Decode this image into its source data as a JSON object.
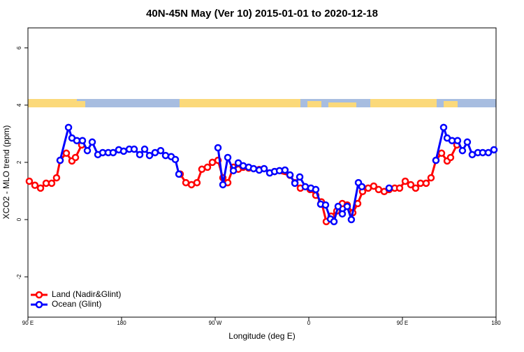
{
  "chart_data": {
    "type": "line",
    "title": "40N-45N May (Ver 10)   2015-01-01 to 2020-12-18",
    "x_label": "Longitude (deg E)",
    "y_label": "XCO2 - MLO trend (ppm)",
    "xlim": [
      90,
      540
    ],
    "xticks": [
      {
        "value": 90,
        "label": "90 E"
      },
      {
        "value": 180,
        "label": "180"
      },
      {
        "value": 270,
        "label": "90 W"
      },
      {
        "value": 360,
        "label": "0"
      },
      {
        "value": 450,
        "label": "90 E"
      },
      {
        "value": 540,
        "label": "180"
      }
    ],
    "ylim": [
      -3.41,
      6.7
    ],
    "yticks": [
      -2,
      0,
      2,
      4,
      6
    ],
    "legend": "bottom-left",
    "series": [
      {
        "name": "Land (Nadir&Glint)",
        "color": "#ff0000",
        "x": [
          91.3,
          96.7,
          102.1,
          107.5,
          112.8,
          117.5,
          120.9,
          126.9,
          132.3,
          135.7,
          141.7,
          null,
          236.4,
          241.8,
          247.2,
          252.5,
          257.2,
          262.6,
          267.3,
          272.7,
          277.4,
          282.1,
          287.5,
          292.2,
          296.9,
          302.2,
          312.3,
          327.1,
          341.9,
          346.6,
          351.9,
          361.3,
          366.7,
          372.1,
          376.8,
          381.5,
          386.9,
          392.2,
          396.9,
          402.3,
          407,
          411.7,
          417.1,
          422.4,
          427.1,
          432.5,
          437.2,
          442.6,
          447.3,
          452.7,
          458,
          462.7,
          467.4,
          472.8,
          477.5,
          482.2,
          487.6,
          493,
          496.3,
          502.4
        ],
        "values": [
          1.34,
          1.2,
          1.1,
          1.27,
          1.27,
          1.46,
          2.07,
          2.32,
          2.05,
          2.17,
          2.61,
          null,
          1.59,
          1.29,
          1.22,
          1.29,
          1.76,
          1.83,
          2.0,
          2.07,
          1.46,
          1.29,
          1.83,
          1.76,
          1.83,
          1.8,
          1.75,
          1.68,
          1.55,
          1.29,
          1.1,
          1.05,
          0.85,
          0.62,
          -0.07,
          0.12,
          0.3,
          0.56,
          0.51,
          0.24,
          0.56,
          0.98,
          1.1,
          1.17,
          1.05,
          0.98,
          1.05,
          1.1,
          1.1,
          1.34,
          1.22,
          1.1,
          1.27,
          1.27,
          1.46,
          2.07,
          2.32,
          2.05,
          2.17,
          2.61
        ]
      },
      {
        "name": "Ocean (Glint)",
        "color": "#0000ff",
        "x": [
          120.9,
          129,
          132.3,
          137,
          142.4,
          147.1,
          151.8,
          157.2,
          161.9,
          167.2,
          171.9,
          177.3,
          182,
          187.4,
          192.1,
          197.5,
          202.2,
          206.9,
          212.2,
          217.6,
          222.3,
          227.7,
          231.7,
          235.1,
          null,
          272.7,
          277.4,
          282.1,
          287.5,
          292.2,
          296.9,
          302.2,
          306.9,
          312.3,
          317,
          322.4,
          327.1,
          331.8,
          337.1,
          341.9,
          346.6,
          351.3,
          356.6,
          362,
          366.7,
          371.4,
          376.1,
          380.8,
          384.2,
          388.2,
          392.2,
          396.9,
          400.9,
          407.7,
          411,
          null,
          437.2,
          null,
          482.2,
          489.6,
          493,
          497.7,
          503,
          507.7,
          512.4,
          517.1,
          522.5,
          527.2,
          532.6,
          538
        ],
        "values": [
          2.07,
          3.22,
          2.85,
          2.76,
          2.76,
          2.41,
          2.71,
          2.27,
          2.34,
          2.34,
          2.34,
          2.44,
          2.39,
          2.46,
          2.46,
          2.27,
          2.46,
          2.24,
          2.34,
          2.41,
          2.24,
          2.2,
          2.1,
          1.59,
          null,
          2.51,
          1.22,
          2.17,
          1.71,
          1.98,
          1.88,
          1.83,
          1.78,
          1.73,
          1.78,
          1.63,
          1.68,
          1.71,
          1.73,
          1.56,
          1.27,
          1.49,
          1.15,
          1.1,
          1.05,
          0.54,
          0.51,
          0.02,
          -0.07,
          0.46,
          0.2,
          0.46,
          0,
          1.29,
          1.15,
          null,
          1.1,
          null,
          2.07,
          3.22,
          2.85,
          2.76,
          2.76,
          2.41,
          2.71,
          2.27,
          2.34,
          2.34,
          2.34,
          2.44
        ]
      }
    ]
  }
}
